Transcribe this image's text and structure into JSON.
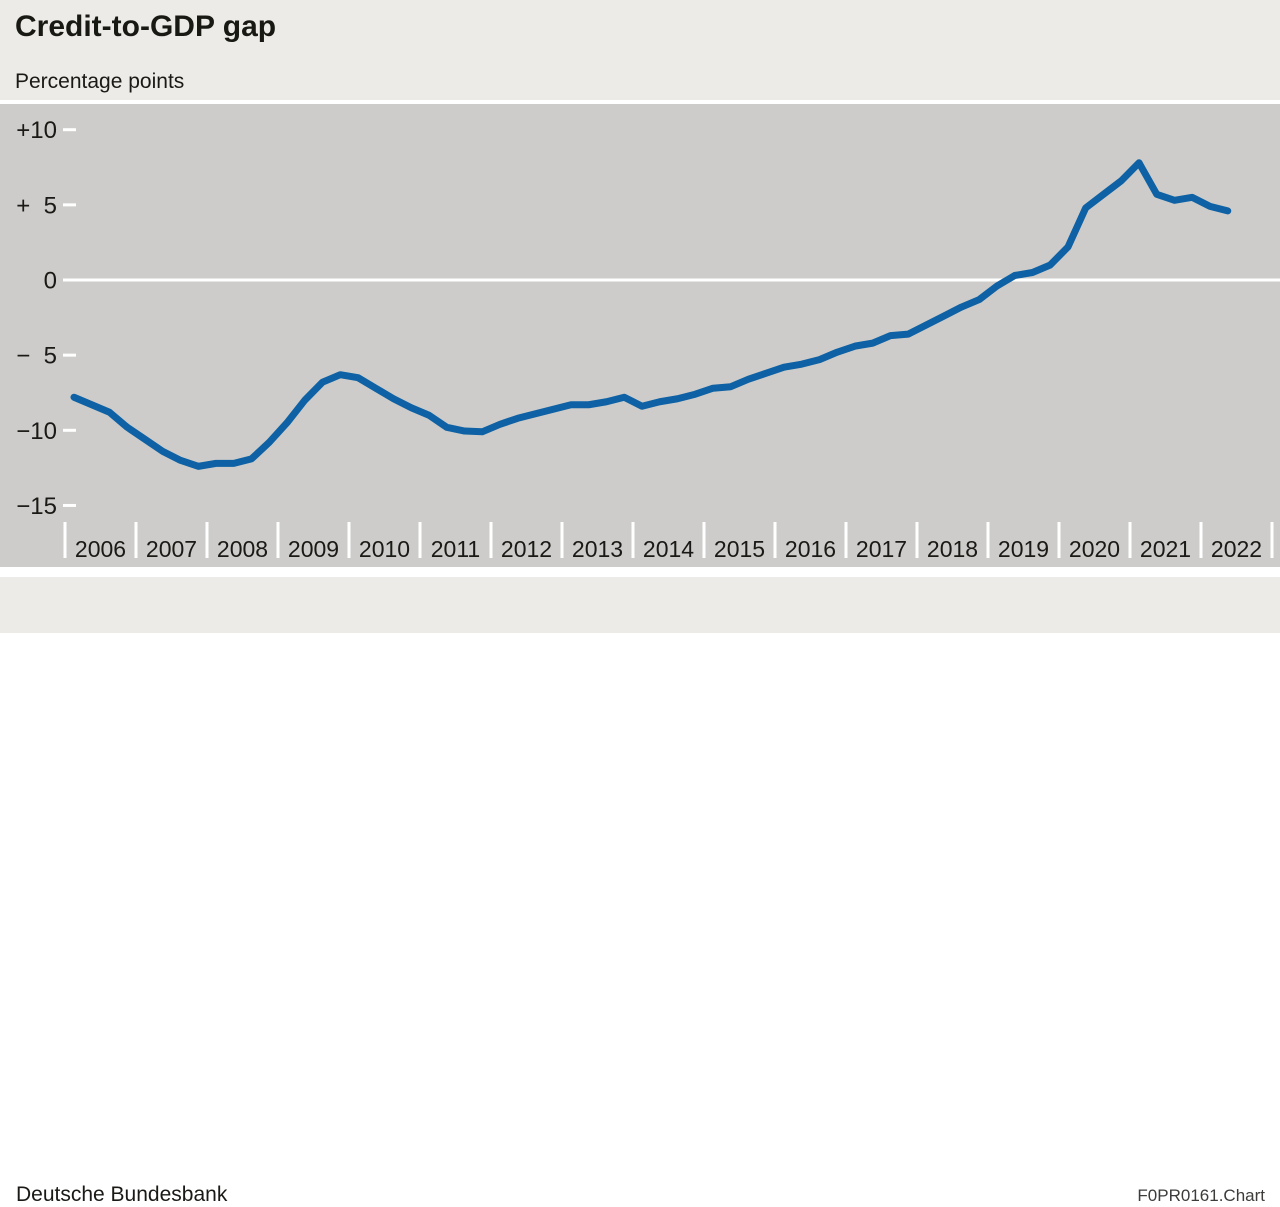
{
  "header": {
    "title": "Credit-to-GDP gap",
    "subtitle": "Percentage points"
  },
  "footer": {
    "source": "Deutsche Bundesbank",
    "code": "F0PR0161.Chart"
  },
  "chart_data": {
    "type": "line",
    "title": "Credit-to-GDP gap",
    "unit": "Percentage points",
    "frequency": "quarterly",
    "start_period": "2006-Q1",
    "end_period": "2022-Q2",
    "x_tick_years": [
      "2006",
      "2007",
      "2008",
      "2009",
      "2010",
      "2011",
      "2012",
      "2013",
      "2014",
      "2015",
      "2016",
      "2017",
      "2018",
      "2019",
      "2020",
      "2021",
      "2022"
    ],
    "y_ticks": [
      {
        "value": 10,
        "label": "+10"
      },
      {
        "value": 5,
        "label": "+ 5"
      },
      {
        "value": 0,
        "label": "0"
      },
      {
        "value": -5,
        "label": "− 5"
      },
      {
        "value": -10,
        "label": "−10"
      },
      {
        "value": -15,
        "label": "−15"
      }
    ],
    "ylim": [
      -19,
      11.8
    ],
    "grid": "zero-line-only",
    "legend": "none",
    "values": [
      -7.8,
      -8.3,
      -8.8,
      -9.8,
      -10.6,
      -11.4,
      -12.0,
      -12.4,
      -12.2,
      -12.2,
      -11.9,
      -10.8,
      -9.5,
      -8.0,
      -6.8,
      -6.3,
      -6.5,
      -7.2,
      -7.9,
      -8.5,
      -9.0,
      -9.8,
      -10.05,
      -10.1,
      -9.6,
      -9.2,
      -8.9,
      -8.6,
      -8.3,
      -8.3,
      -8.1,
      -7.8,
      -8.4,
      -8.1,
      -7.9,
      -7.6,
      -7.2,
      -7.1,
      -6.6,
      -6.2,
      -5.8,
      -5.6,
      -5.3,
      -4.8,
      -4.4,
      -4.2,
      -3.7,
      -3.6,
      -3.0,
      -2.4,
      -1.8,
      -1.3,
      -0.4,
      0.3,
      0.5,
      1.0,
      2.2,
      4.8,
      5.7,
      6.6,
      7.8,
      5.7,
      5.3,
      5.5,
      4.9,
      4.6
    ],
    "colors": {
      "line": "#0D61A4",
      "plot_bg": "#CDCCCA",
      "page_bg": "#ECEBE8",
      "axis_text": "#1A1915",
      "grid": "#FFFFFF"
    }
  }
}
